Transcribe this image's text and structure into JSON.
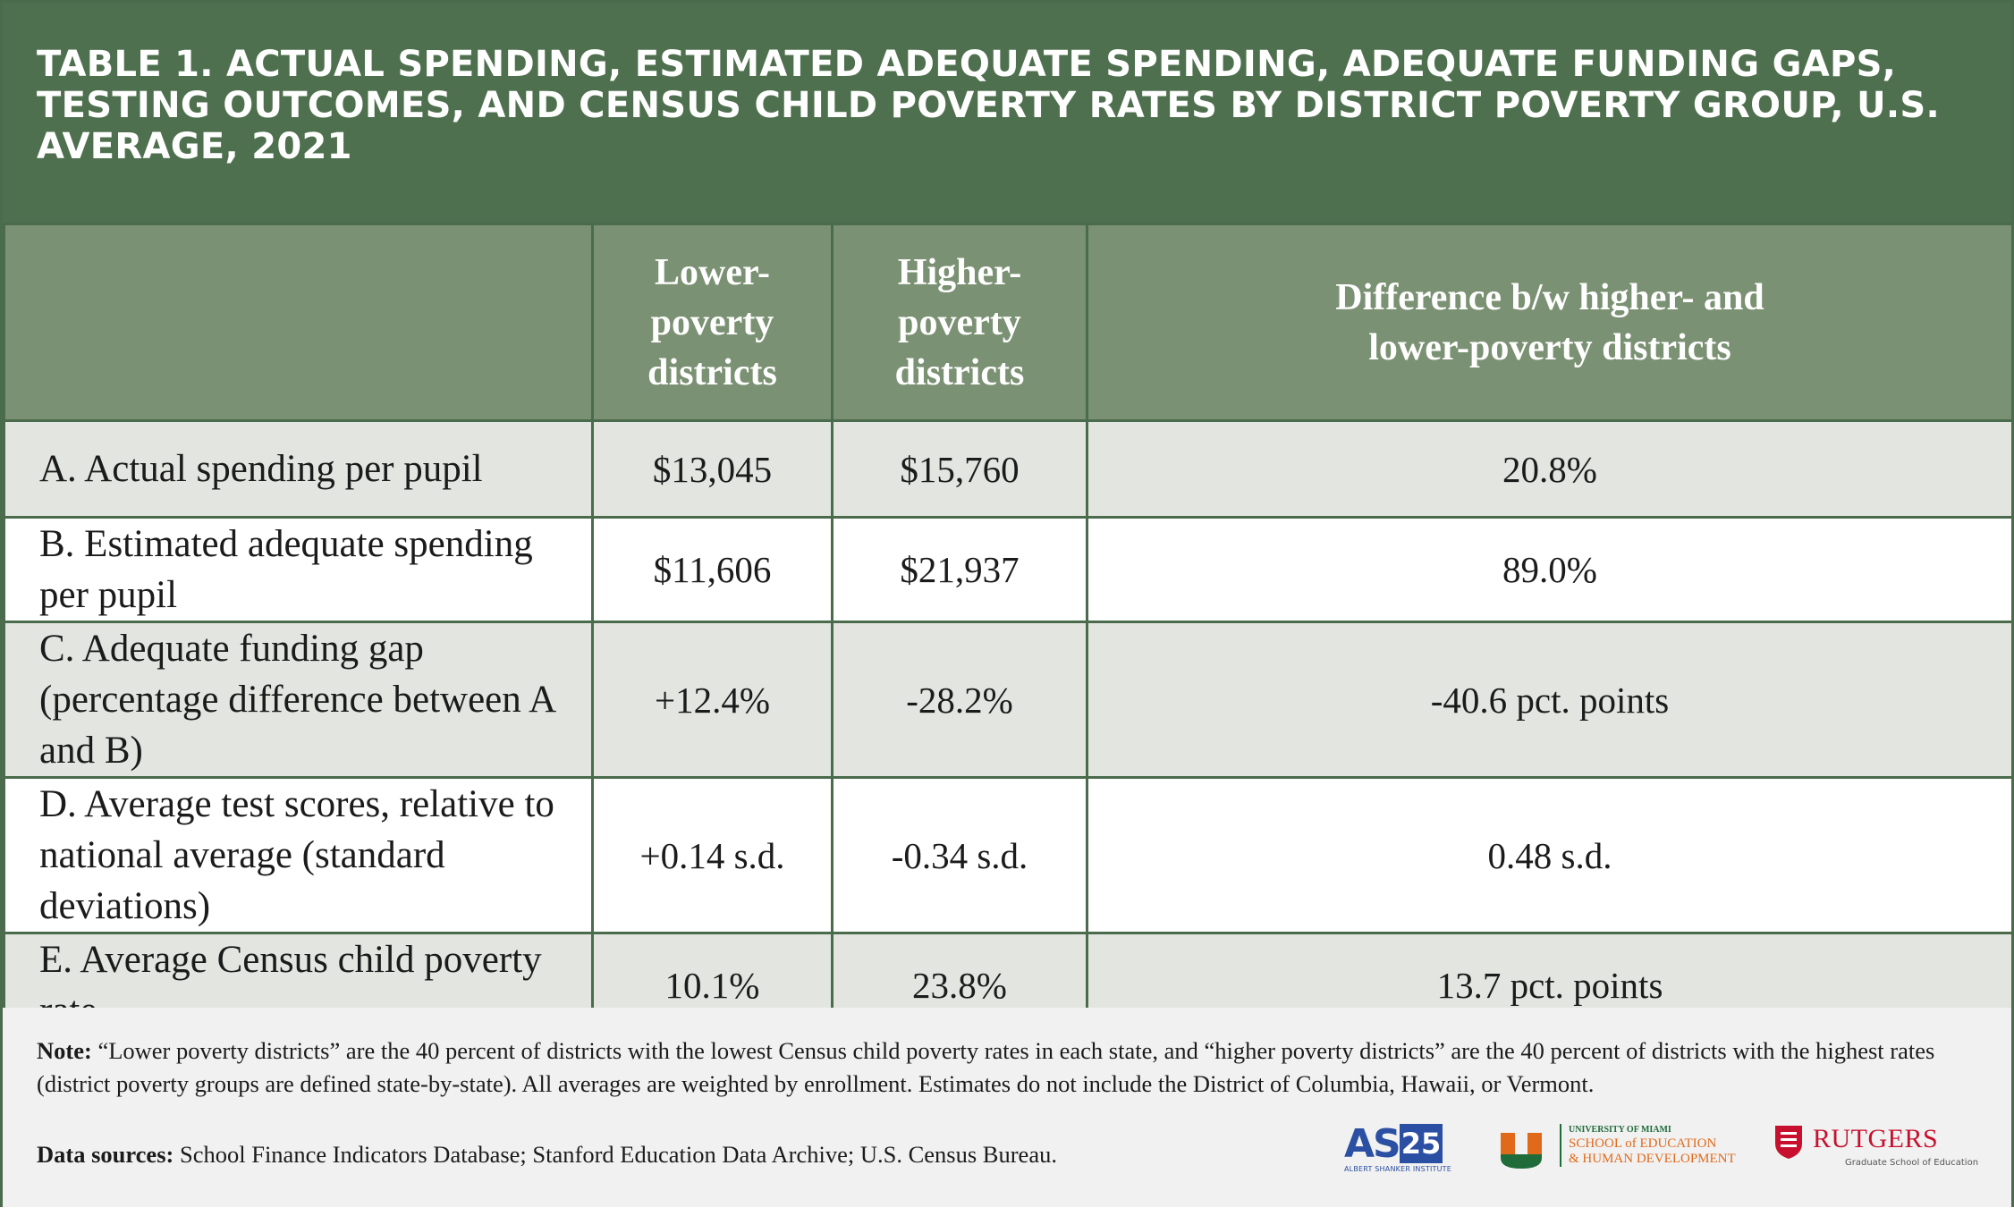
{
  "title": "TABLE 1. ACTUAL SPENDING, ESTIMATED ADEQUATE SPENDING, ADEQUATE FUNDING GAPS, TESTING OUTCOMES, AND CENSUS CHILD POVERTY RATES BY DISTRICT POVERTY GROUP, U.S. AVERAGE, 2021",
  "table": {
    "headers": [
      "",
      "Lower-poverty districts",
      "Higher-poverty districts",
      "Difference b/w higher- and lower-poverty districts"
    ],
    "rows": [
      {
        "label": "A. Actual spending per pupil",
        "lower": "$13,045",
        "higher": "$15,760",
        "difference": "20.8%"
      },
      {
        "label": "B. Estimated adequate spending per pupil",
        "lower": "$11,606",
        "higher": "$21,937",
        "difference": "89.0%"
      },
      {
        "label": "C. Adequate funding gap (percentage difference between A and B)",
        "lower": "+12.4%",
        "higher": "-28.2%",
        "difference": "-40.6 pct. points"
      },
      {
        "label": "D. Average test scores, relative to national average (standard deviations)",
        "lower": "+0.14 s.d.",
        "higher": "-0.34 s.d.",
        "difference": "0.48 s.d."
      },
      {
        "label": "E. Average Census child poverty rate",
        "lower": "10.1%",
        "higher": "23.8%",
        "difference": "13.7 pct. points"
      }
    ]
  },
  "note": {
    "label": "Note:",
    "text": "“Lower poverty districts” are the 40 percent of districts with the lowest Census child poverty rates in each state, and “higher poverty districts” are the 40 percent of districts with the highest rates (district poverty groups are defined state-by-state). All averages are weighted by enrollment. Estimates do not include the District of Columbia, Hawaii, or Vermont."
  },
  "sources": {
    "label": "Data sources:",
    "text": "School Finance Indicators Database; Stanford Education Data Archive; U.S. Census Bureau."
  },
  "logos": {
    "asi": {
      "mark": "ASI",
      "number": "25",
      "name": "ALBERT SHANKER INSTITUTE"
    },
    "miami": {
      "top": "UNIVERSITY OF MIAMI",
      "line1": "SCHOOL of EDUCATION",
      "line2": "& HUMAN DEVELOPMENT"
    },
    "rutgers": {
      "name": "RUTGERS",
      "sub": "Graduate School of Education"
    }
  },
  "colors": {
    "title_bg": "#4f704f",
    "header_bg": "#7b9173",
    "row_shaded": "#e3e6e0",
    "row_plain": "#ffffff",
    "border": "#4a6b4c"
  }
}
